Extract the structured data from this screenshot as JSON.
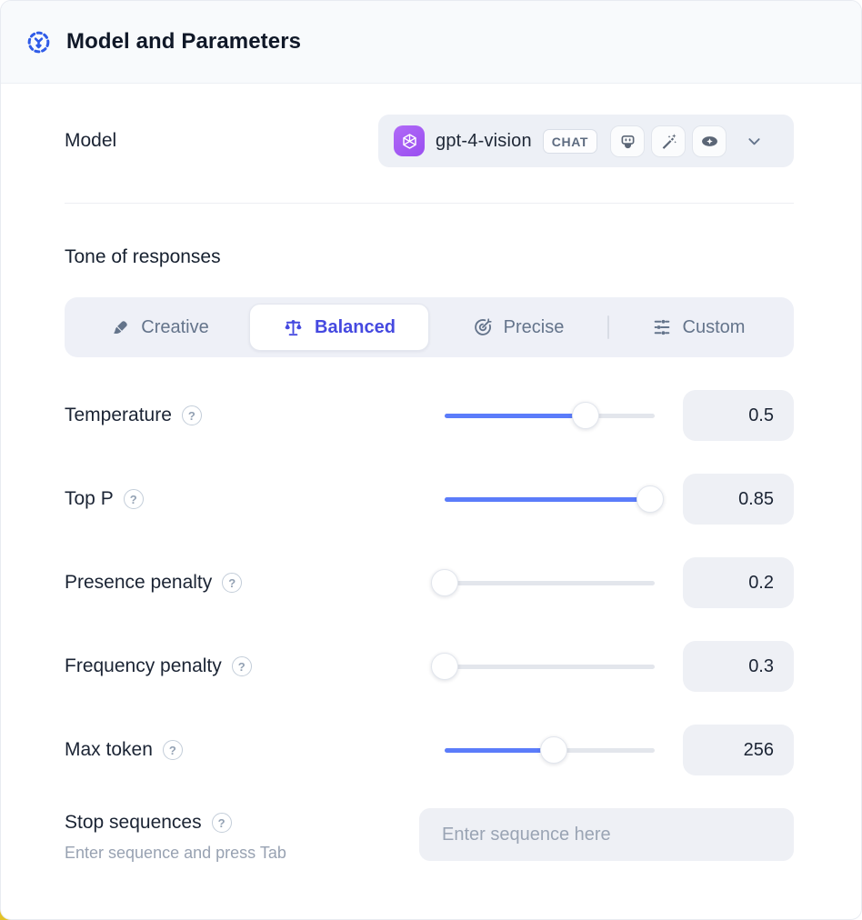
{
  "header": {
    "title": "Model and Parameters"
  },
  "model": {
    "label": "Model",
    "selected": "gpt-4-vision",
    "type_badge": "CHAT",
    "capability_icons": [
      "robot-icon",
      "magic-wand-icon",
      "vision-eye-icon"
    ],
    "logo": "openai-logo"
  },
  "tone": {
    "label": "Tone of responses",
    "options": [
      {
        "label": "Creative",
        "icon": "paintbrush-icon",
        "selected": false
      },
      {
        "label": "Balanced",
        "icon": "balance-scale-icon",
        "selected": true
      },
      {
        "label": "Precise",
        "icon": "target-icon",
        "selected": false
      },
      {
        "label": "Custom",
        "icon": "sliders-icon",
        "selected": false
      }
    ]
  },
  "parameters": [
    {
      "label": "Temperature",
      "value": "0.5",
      "percent": 67
    },
    {
      "label": "Top P",
      "value": "0.85",
      "percent": 98
    },
    {
      "label": "Presence penalty",
      "value": "0.2",
      "percent": 0
    },
    {
      "label": "Frequency penalty",
      "value": "0.3",
      "percent": 0
    },
    {
      "label": "Max token",
      "value": "256",
      "percent": 52
    }
  ],
  "stop_sequences": {
    "label": "Stop sequences",
    "helper": "Enter sequence and press Tab",
    "placeholder": "Enter sequence here"
  },
  "icons": {
    "help_glyph": "?"
  },
  "colors": {
    "slider_accent": "#5b7cfa",
    "active_tone": "#4549e0",
    "openai_purple": "#a35ef2",
    "header_icon_blue": "#2f5be8",
    "corner_accent_yellow": "#e3c227"
  }
}
